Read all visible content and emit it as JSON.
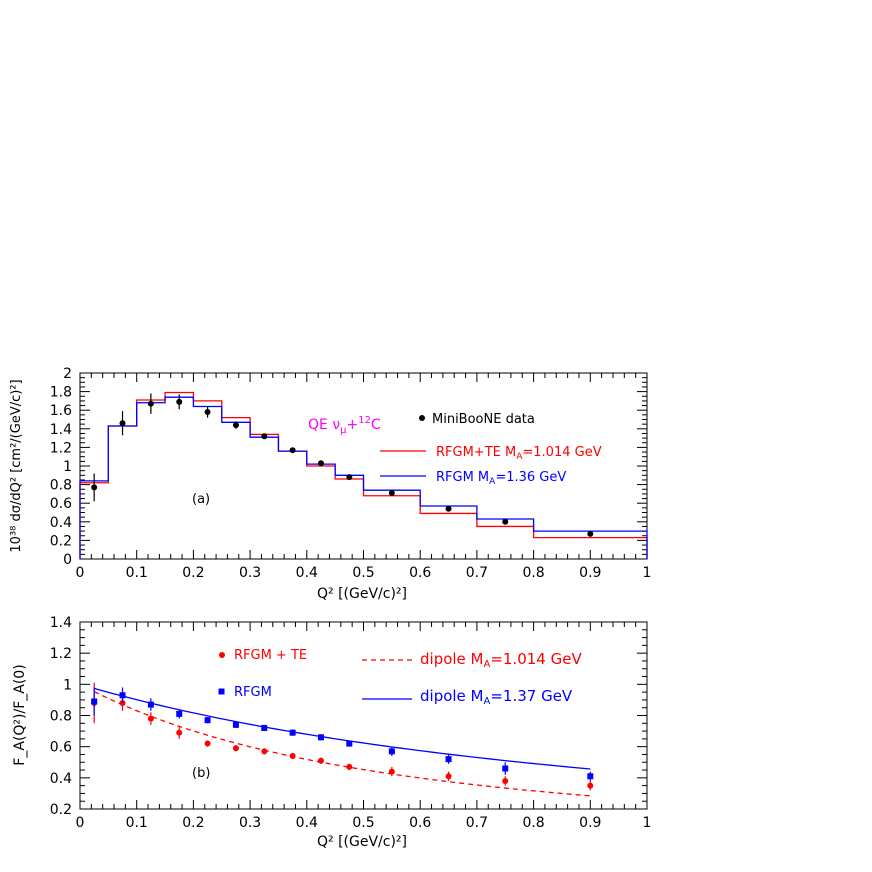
{
  "chart_data": [
    {
      "type": "bar",
      "panel_label": "(a)",
      "title": "QE ν_μ+¹²C",
      "title_parts": [
        "QE  ν",
        "μ",
        "+",
        "12",
        "C"
      ],
      "xlabel": "Q² [(GeV/c)²]",
      "ylabel": "10³⁸ dσ/dQ² [cm²/(GeV/c)²]",
      "xlim": [
        0,
        1
      ],
      "ylim": [
        0,
        2
      ],
      "xticks": [
        "0",
        "0.1",
        "0.2",
        "0.3",
        "0.4",
        "0.5",
        "0.6",
        "0.7",
        "0.8",
        "0.9",
        "1"
      ],
      "yticks": [
        "0",
        "0.2",
        "0.4",
        "0.6",
        "0.8",
        "1",
        "1.2",
        "1.4",
        "1.6",
        "1.8",
        "2"
      ],
      "bin_edges": [
        0,
        0.05,
        0.1,
        0.15,
        0.2,
        0.25,
        0.3,
        0.35,
        0.4,
        0.45,
        0.5,
        0.6,
        0.7,
        0.8,
        1.0
      ],
      "series": [
        {
          "name": "MiniBooNE data",
          "kind": "points",
          "color": "#000000",
          "x": [
            0.025,
            0.075,
            0.125,
            0.175,
            0.225,
            0.275,
            0.325,
            0.375,
            0.425,
            0.475,
            0.55,
            0.65,
            0.75,
            0.9
          ],
          "y": [
            0.77,
            1.46,
            1.67,
            1.69,
            1.58,
            1.44,
            1.32,
            1.17,
            1.03,
            0.88,
            0.71,
            0.54,
            0.4,
            0.27
          ],
          "err": [
            0.15,
            0.13,
            0.11,
            0.08,
            0.06,
            0.04,
            0.03,
            0.02,
            0.02,
            0.02,
            0.02,
            0.02,
            0.02,
            0.02
          ]
        },
        {
          "name": "RFGM+TE M_A=1.014 GeV",
          "label_parts": [
            "RFGM+TE  M",
            "A",
            "=1.014 GeV"
          ],
          "kind": "histogram",
          "color": "#ff0000",
          "values": [
            0.82,
            1.43,
            1.71,
            1.79,
            1.7,
            1.52,
            1.34,
            1.16,
            1.0,
            0.86,
            0.68,
            0.49,
            0.35,
            0.23
          ]
        },
        {
          "name": "RFGM M_A=1.36 GeV",
          "label_parts": [
            "RFGM M",
            "A",
            "=1.36 GeV"
          ],
          "kind": "histogram",
          "color": "#0000ff",
          "values": [
            0.84,
            1.43,
            1.68,
            1.74,
            1.64,
            1.47,
            1.31,
            1.16,
            1.02,
            0.9,
            0.74,
            0.57,
            0.43,
            0.3
          ]
        }
      ]
    },
    {
      "type": "line",
      "panel_label": "(b)",
      "xlabel": "Q² [(GeV/c)²]",
      "ylabel": "F_A(Q²)/F_A(0)",
      "xlim": [
        0,
        1
      ],
      "ylim": [
        0.2,
        1.4
      ],
      "xticks": [
        "0",
        "0.1",
        "0.2",
        "0.3",
        "0.4",
        "0.5",
        "0.6",
        "0.7",
        "0.8",
        "0.9",
        "1"
      ],
      "yticks": [
        "0.2",
        "0.4",
        "0.6",
        "0.8",
        "1",
        "1.2",
        "1.4"
      ],
      "series": [
        {
          "name": "RFGM + TE",
          "kind": "points",
          "marker": "circle",
          "color": "#ff0000",
          "x": [
            0.025,
            0.075,
            0.125,
            0.175,
            0.225,
            0.275,
            0.325,
            0.375,
            0.425,
            0.475,
            0.55,
            0.65,
            0.75,
            0.9
          ],
          "y": [
            0.88,
            0.88,
            0.78,
            0.69,
            0.62,
            0.59,
            0.57,
            0.54,
            0.51,
            0.47,
            0.44,
            0.41,
            0.38,
            0.35
          ],
          "err": [
            0.13,
            0.05,
            0.04,
            0.04,
            0.02,
            0.02,
            0.02,
            0.02,
            0.02,
            0.02,
            0.03,
            0.03,
            0.03,
            0.03
          ]
        },
        {
          "name": "RFGM",
          "kind": "points",
          "marker": "square",
          "color": "#0000ff",
          "x": [
            0.025,
            0.075,
            0.125,
            0.175,
            0.225,
            0.275,
            0.325,
            0.375,
            0.425,
            0.475,
            0.55,
            0.65,
            0.75,
            0.9
          ],
          "y": [
            0.89,
            0.93,
            0.87,
            0.81,
            0.77,
            0.74,
            0.72,
            0.69,
            0.66,
            0.62,
            0.57,
            0.52,
            0.46,
            0.41
          ],
          "err": [
            0.09,
            0.05,
            0.04,
            0.03,
            0.02,
            0.02,
            0.02,
            0.02,
            0.02,
            0.02,
            0.03,
            0.03,
            0.04,
            0.03
          ]
        },
        {
          "name": "dipole M_A=1.014 GeV",
          "label_parts": [
            "dipole M",
            "A",
            "=1.014 GeV"
          ],
          "kind": "dipole",
          "dash": true,
          "color": "#ff0000",
          "MA": 1.014,
          "x_range": [
            0.025,
            0.9
          ]
        },
        {
          "name": "dipole M_A=1.37 GeV",
          "label_parts": [
            "dipole M",
            "A",
            "=1.37 GeV"
          ],
          "kind": "dipole",
          "dash": false,
          "color": "#0000ff",
          "MA": 1.37,
          "x_range": [
            0.025,
            0.9
          ]
        }
      ]
    }
  ]
}
